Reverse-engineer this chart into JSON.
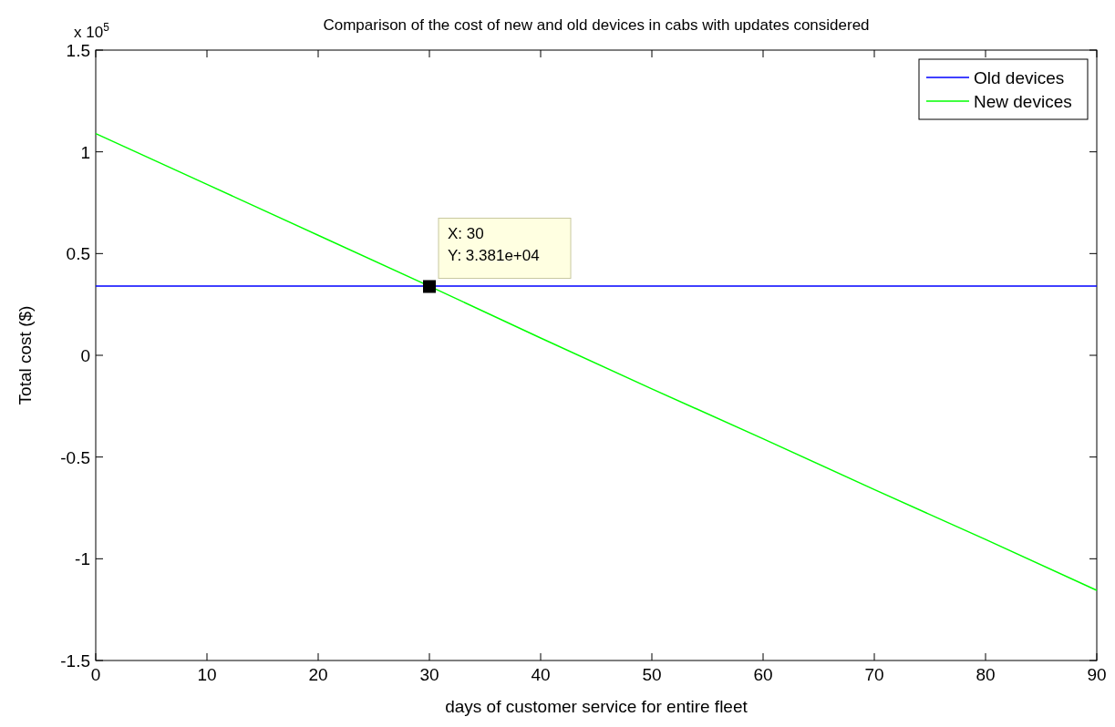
{
  "chart_data": {
    "type": "line",
    "title": "Comparison of the cost of new and old devices in cabs with updates considered",
    "xlabel": "days of customer service for entire fleet",
    "ylabel": "Total cost ($)",
    "x": [
      0,
      10,
      20,
      30,
      40,
      50,
      60,
      70,
      80,
      90
    ],
    "series": [
      {
        "name": "Old devices",
        "color": "#0000ff",
        "values": [
          0.34,
          0.34,
          0.34,
          0.34,
          0.34,
          0.34,
          0.34,
          0.34,
          0.34,
          0.34
        ]
      },
      {
        "name": "New devices",
        "color": "#00ff00",
        "values": [
          1.09,
          0.84,
          0.59,
          0.34,
          0.085,
          -0.165,
          -0.41,
          -0.66,
          -0.905,
          -1.155
        ]
      }
    ],
    "xlim": [
      0,
      90
    ],
    "xticks": [
      0,
      10,
      20,
      30,
      40,
      50,
      60,
      70,
      80,
      90
    ],
    "ylim": [
      -1.5,
      1.5
    ],
    "yticks": [
      -1.5,
      -1,
      -0.5,
      0,
      0.5,
      1,
      1.5
    ],
    "annotations": [
      "x 10$^{5}$",
      {
        "text": "X: 30\nY: 3.381e+04",
        "x": 30,
        "y": 0.3381
      }
    ],
    "legend": "top right",
    "grid": false
  }
}
